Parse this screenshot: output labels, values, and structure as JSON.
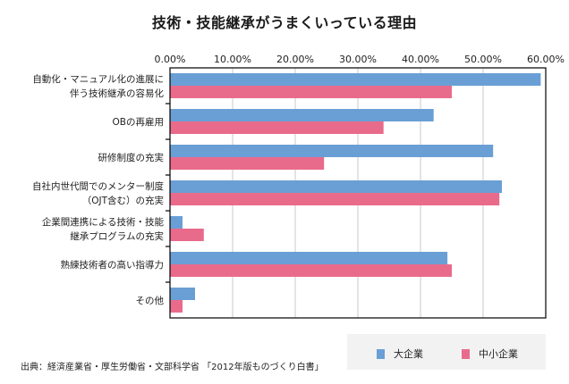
{
  "chart_data": {
    "type": "bar",
    "orientation": "horizontal",
    "title": "技術・技能継承がうまくいっている理由",
    "xlabel": "",
    "ylabel": "",
    "xlim": [
      0,
      60
    ],
    "x_ticks": [
      "0.00%",
      "10.00%",
      "20.00%",
      "30.00%",
      "40.00%",
      "50.00%",
      "60.00%"
    ],
    "x_axis_position": "top",
    "grid": true,
    "legend_position": "bottom-right",
    "categories": [
      [
        "自動化・マニュアル化の進展に",
        "伴う技術継承の容易化"
      ],
      [
        "OBの再雇用"
      ],
      [
        "研修制度の充実"
      ],
      [
        "自社内世代間でのメンター制度",
        "（OJT含む）の充実"
      ],
      [
        "企業間連携による技術・技能",
        "継承プログラムの充実"
      ],
      [
        "熟練技術者の高い指導力"
      ],
      [
        "その他"
      ]
    ],
    "series": [
      {
        "name": "大企業",
        "color": "#6a9fd5",
        "values": [
          59.2,
          42.1,
          51.6,
          53.0,
          2.0,
          44.3,
          4.0
        ]
      },
      {
        "name": "中小企業",
        "color": "#e96b8c",
        "values": [
          45.0,
          34.1,
          24.6,
          52.6,
          5.4,
          45.0,
          2.0
        ]
      }
    ],
    "unit": "%"
  },
  "source_note": "出典：経済産業省・厚生労働省・文部科学省 「2012年版ものづくり白書」",
  "colors": {
    "gridline": "#c8c8c8",
    "axis": "#000000",
    "legend_bg": "#f2f2f2"
  }
}
